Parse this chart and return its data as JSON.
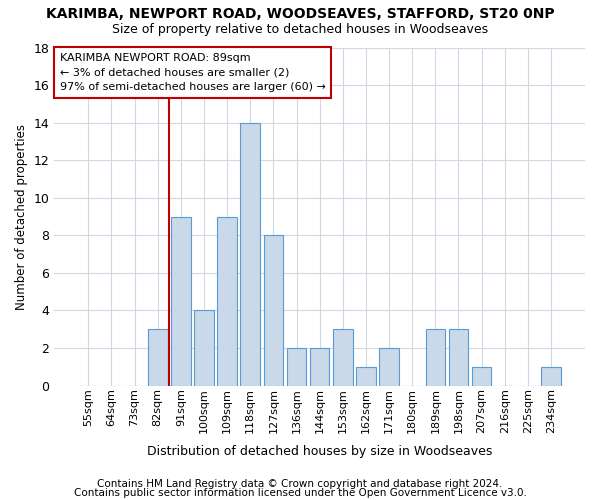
{
  "title_main": "KARIMBA, NEWPORT ROAD, WOODSEAVES, STAFFORD, ST20 0NP",
  "title_sub": "Size of property relative to detached houses in Woodseaves",
  "xlabel": "Distribution of detached houses by size in Woodseaves",
  "ylabel": "Number of detached properties",
  "footnote1": "Contains HM Land Registry data © Crown copyright and database right 2024.",
  "footnote2": "Contains public sector information licensed under the Open Government Licence v3.0.",
  "bar_labels": [
    "55sqm",
    "64sqm",
    "73sqm",
    "82sqm",
    "91sqm",
    "100sqm",
    "109sqm",
    "118sqm",
    "127sqm",
    "136sqm",
    "144sqm",
    "153sqm",
    "162sqm",
    "171sqm",
    "180sqm",
    "189sqm",
    "198sqm",
    "207sqm",
    "216sqm",
    "225sqm",
    "234sqm"
  ],
  "bar_values": [
    0,
    0,
    0,
    3,
    9,
    4,
    9,
    14,
    8,
    2,
    2,
    3,
    1,
    2,
    0,
    3,
    3,
    1,
    0,
    0,
    1
  ],
  "bar_color": "#c9d9ea",
  "bar_edge_color": "#5b9bd5",
  "vline_x_index": 4,
  "vline_color": "#c00000",
  "ylim": [
    0,
    18
  ],
  "yticks": [
    0,
    2,
    4,
    6,
    8,
    10,
    12,
    14,
    16,
    18
  ],
  "annotation_line1": "KARIMBA NEWPORT ROAD: 89sqm",
  "annotation_line2": "← 3% of detached houses are smaller (2)",
  "annotation_line3": "97% of semi-detached houses are larger (60) →",
  "annotation_box_color": "#ffffff",
  "annotation_box_edge": "#c00000",
  "bg_color": "#ffffff",
  "grid_color": "#d0d8e4",
  "title_color": "#000000",
  "footnote_fontsize": 7.5,
  "bar_width": 0.85
}
